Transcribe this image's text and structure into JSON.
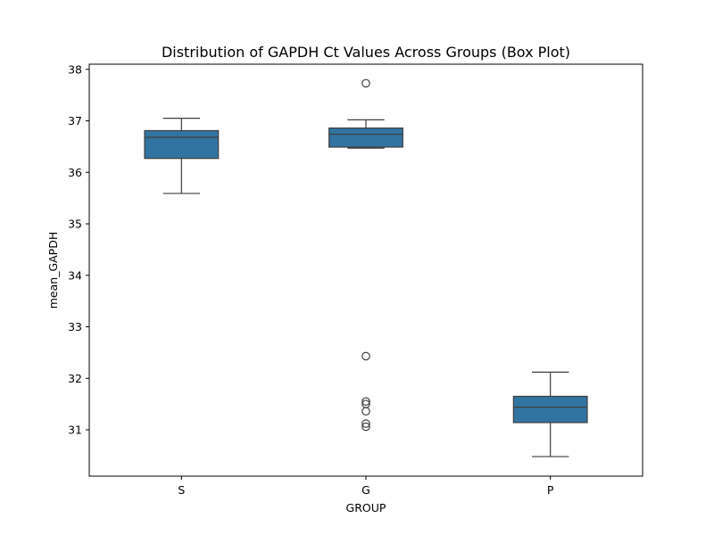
{
  "chart_data": {
    "type": "box",
    "title": "Distribution of GAPDH Ct Values Across Groups (Box Plot)",
    "xlabel": "GROUP",
    "ylabel": "mean_GAPDH",
    "categories": [
      "S",
      "G",
      "P"
    ],
    "ylim": [
      30.1,
      38.1
    ],
    "yticks": [
      31,
      32,
      33,
      34,
      35,
      36,
      37,
      38
    ],
    "grid": false,
    "box_color": "#3274a1",
    "line_color": "#3f3f3f",
    "boxes": [
      {
        "category": "S",
        "whisker_low": 35.59,
        "q1": 36.27,
        "median": 36.68,
        "q3": 36.81,
        "whisker_high": 37.05,
        "outliers": []
      },
      {
        "category": "G",
        "whisker_low": 36.47,
        "q1": 36.49,
        "median": 36.74,
        "q3": 36.86,
        "whisker_high": 37.02,
        "outliers": [
          37.73,
          32.43,
          31.55,
          31.5,
          31.36,
          31.12,
          31.06
        ]
      },
      {
        "category": "P",
        "whisker_low": 30.48,
        "q1": 31.14,
        "median": 31.44,
        "q3": 31.65,
        "whisker_high": 32.12,
        "outliers": []
      }
    ]
  }
}
